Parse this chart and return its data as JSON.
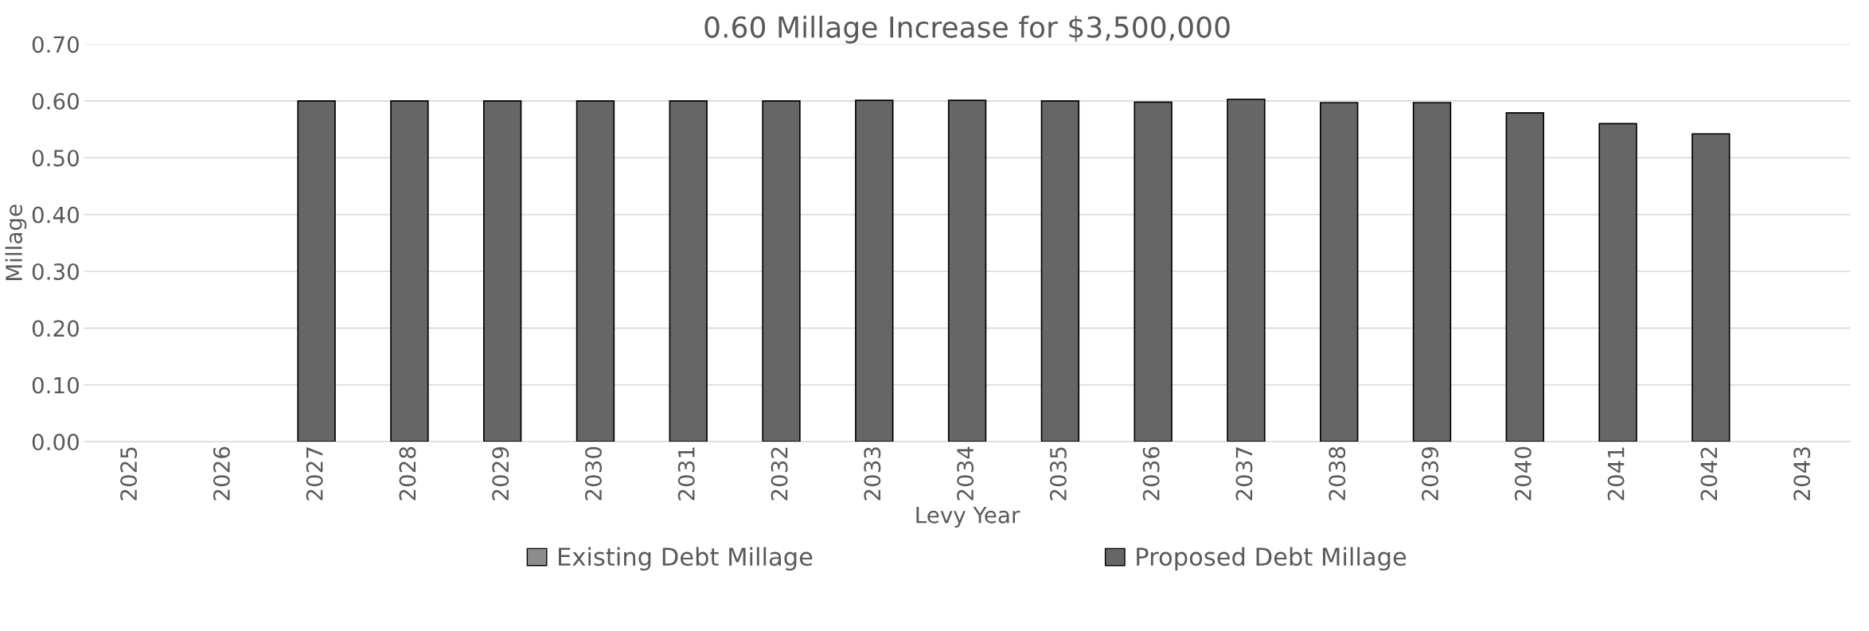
{
  "chart_data": {
    "type": "bar",
    "title": "0.60 Millage Increase for $3,500,000",
    "xlabel": "Levy Year",
    "ylabel": "Millage",
    "categories": [
      "2025",
      "2026",
      "2027",
      "2028",
      "2029",
      "2030",
      "2031",
      "2032",
      "2033",
      "2034",
      "2035",
      "2036",
      "2037",
      "2038",
      "2039",
      "2040",
      "2041",
      "2042",
      "2043"
    ],
    "series": [
      {
        "name": "Existing Debt Millage",
        "color": "#8c8c8c",
        "values": [
          null,
          null,
          null,
          null,
          null,
          null,
          null,
          null,
          null,
          null,
          null,
          null,
          null,
          null,
          null,
          null,
          null,
          null,
          null
        ]
      },
      {
        "name": "Proposed Debt Millage",
        "color": "#666666",
        "values": [
          null,
          null,
          0.6,
          0.6,
          0.6,
          0.6,
          0.6,
          0.6,
          0.601,
          0.601,
          0.6,
          0.598,
          0.603,
          0.597,
          0.597,
          0.579,
          0.56,
          0.542,
          null
        ]
      }
    ],
    "ylim": [
      0,
      0.7
    ],
    "yticks": [
      {
        "value": 0,
        "label": "0.00"
      },
      {
        "value": 0.1,
        "label": "0.10"
      },
      {
        "value": 0.2,
        "label": "0.20"
      },
      {
        "value": 0.3,
        "label": "0.30"
      },
      {
        "value": 0.4,
        "label": "0.40"
      },
      {
        "value": 0.5,
        "label": "0.50"
      },
      {
        "value": 0.6,
        "label": "0.60"
      },
      {
        "value": 0.7,
        "label": "0.70"
      }
    ],
    "grid": "y",
    "legend": "bottom"
  }
}
